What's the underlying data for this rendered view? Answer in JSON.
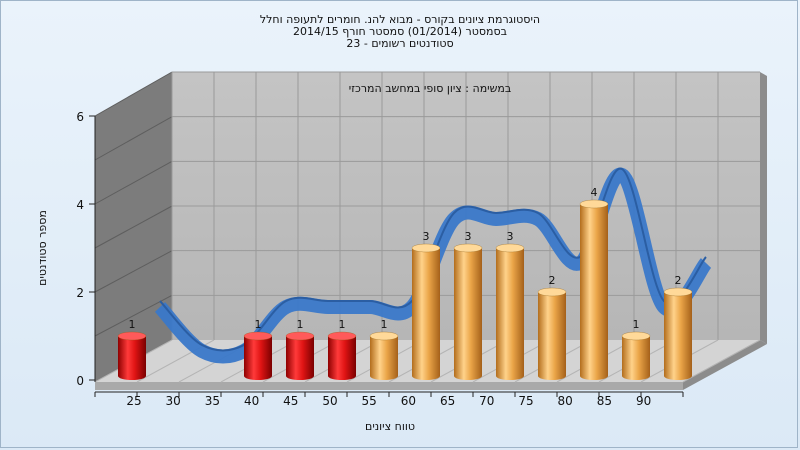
{
  "chart_data": {
    "type": "bar",
    "title_lines": [
      "היסטוגרמת ציונים בקורס - מבוא להנ. חומרים לתעופה וחלל",
      "בסמסטר  (01/2014)  סמסטר חורף 2014/15",
      "סטודנטים רשומים - 23"
    ],
    "subtitle": "במשימה : ציון סופי במחשב המרכזי",
    "xlabel": "טווח ציונים",
    "ylabel": "מספר סטודנטים",
    "categories": [
      "25",
      "30",
      "35",
      "40",
      "45",
      "50",
      "55",
      "60",
      "65",
      "70",
      "75",
      "80",
      "85",
      "90"
    ],
    "values": [
      1,
      0,
      0,
      1,
      1,
      1,
      1,
      3,
      3,
      3,
      2,
      4,
      1,
      2
    ],
    "data_labels": [
      "1",
      "",
      "",
      "1",
      "1",
      "1",
      "1",
      "3",
      "3",
      "3",
      "2",
      "4",
      "1",
      "2"
    ],
    "bar_colors": [
      "#d81010",
      "#d81010",
      "#d81010",
      "#d81010",
      "#d81010",
      "#d81010",
      "#e9a645",
      "#e9a645",
      "#e9a645",
      "#e9a645",
      "#e9a645",
      "#e9a645",
      "#e9a645",
      "#e9a645"
    ],
    "ribbon_color": "#3a78c9",
    "yticks": [
      "0",
      "2",
      "4",
      "6"
    ],
    "ylim": [
      0,
      6
    ],
    "grid": true
  }
}
